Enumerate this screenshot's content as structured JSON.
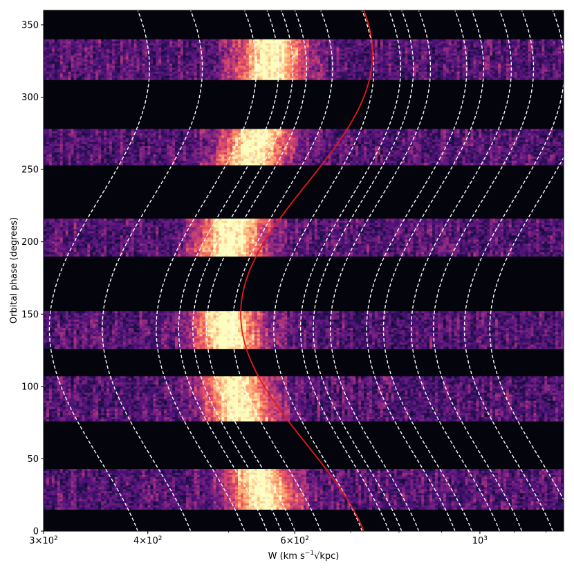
{
  "chart_data": {
    "type": "heatmap",
    "xlabel_parts": [
      "W (km s",
      "−1",
      "√kpc)"
    ],
    "ylabel": "Orbital phase (degrees)",
    "xscale": "log",
    "xlim": [
      300,
      1260
    ],
    "ylim": [
      0,
      360
    ],
    "x_ticks": [
      {
        "value": 300,
        "base": "3×10",
        "exp": "2"
      },
      {
        "value": 400,
        "base": "4×10",
        "exp": "2"
      },
      {
        "value": 600,
        "base": "6×10",
        "exp": "2"
      },
      {
        "value": 1000,
        "base": "10",
        "exp": "3"
      }
    ],
    "y_ticks": [
      0,
      50,
      100,
      150,
      200,
      250,
      300,
      350
    ],
    "colormap": "magma",
    "background_color": "#04040c",
    "observed_phase_bands": [
      [
        15,
        43
      ],
      [
        76,
        107
      ],
      [
        126,
        152
      ],
      [
        190,
        216
      ],
      [
        253,
        278
      ],
      [
        312,
        340
      ]
    ],
    "bright_ridge": {
      "phase": [
        0,
        30,
        60,
        90,
        120,
        150,
        180,
        210,
        240,
        270,
        300,
        330,
        360
      ],
      "W": [
        557,
        548,
        530,
        514,
        502,
        496,
        497,
        505,
        520,
        540,
        556,
        563,
        562
      ]
    },
    "model_curve": {
      "color": "#e3191c",
      "style": "solid",
      "mean_W": 620,
      "log_amplitude": 0.079,
      "phase_of_min_deg": 150
    },
    "dashed_curves": {
      "color": "#ffffff",
      "style": "dashed",
      "mean_W": [
        350,
        405,
        470,
        500,
        520,
        540,
        580,
        650,
        700,
        725,
        760,
        840,
        880,
        950,
        1010,
        1100,
        1180
      ],
      "log_amplitude": 0.06,
      "phase_of_min_deg": 140
    }
  }
}
